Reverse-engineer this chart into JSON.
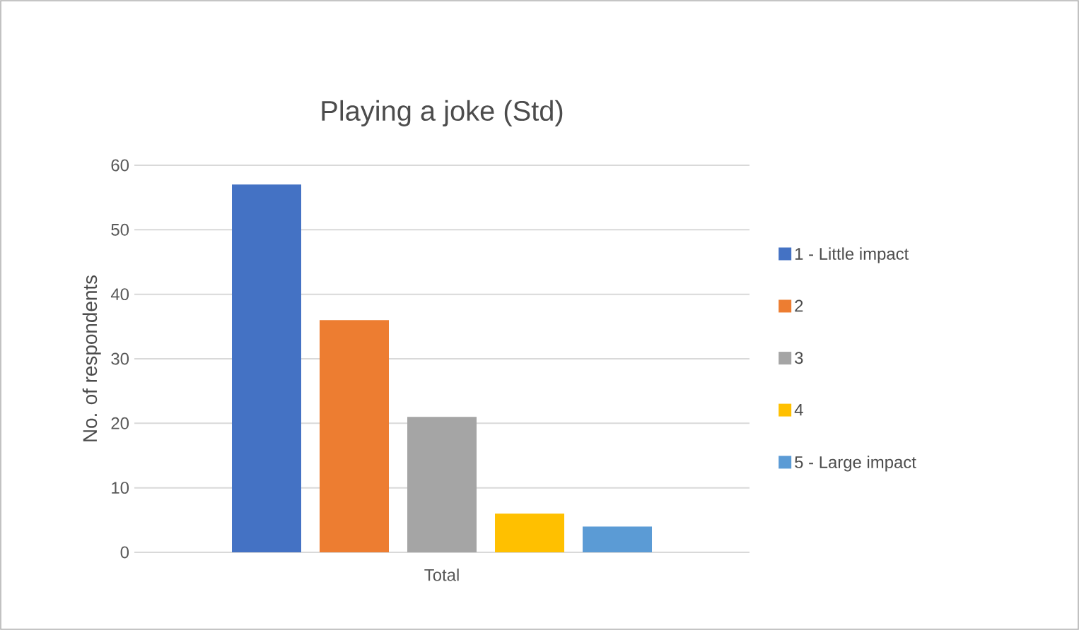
{
  "chart_data": {
    "type": "bar",
    "title": "Playing a joke (Std)",
    "ylabel": "No. of respondents",
    "categories": [
      "Total"
    ],
    "series": [
      {
        "name": "1 - Little impact",
        "color": "#4472c4",
        "values": [
          57
        ]
      },
      {
        "name": "2",
        "color": "#ed7d31",
        "values": [
          36
        ]
      },
      {
        "name": "3",
        "color": "#a5a5a5",
        "values": [
          21
        ]
      },
      {
        "name": "4",
        "color": "#ffc000",
        "values": [
          6
        ]
      },
      {
        "name": "5 - Large impact",
        "color": "#5b9bd5",
        "values": [
          4
        ]
      }
    ],
    "ylim": [
      0,
      60
    ],
    "yticks": [
      0,
      10,
      20,
      30,
      40,
      50,
      60
    ],
    "grid": "y",
    "legend": "right"
  }
}
